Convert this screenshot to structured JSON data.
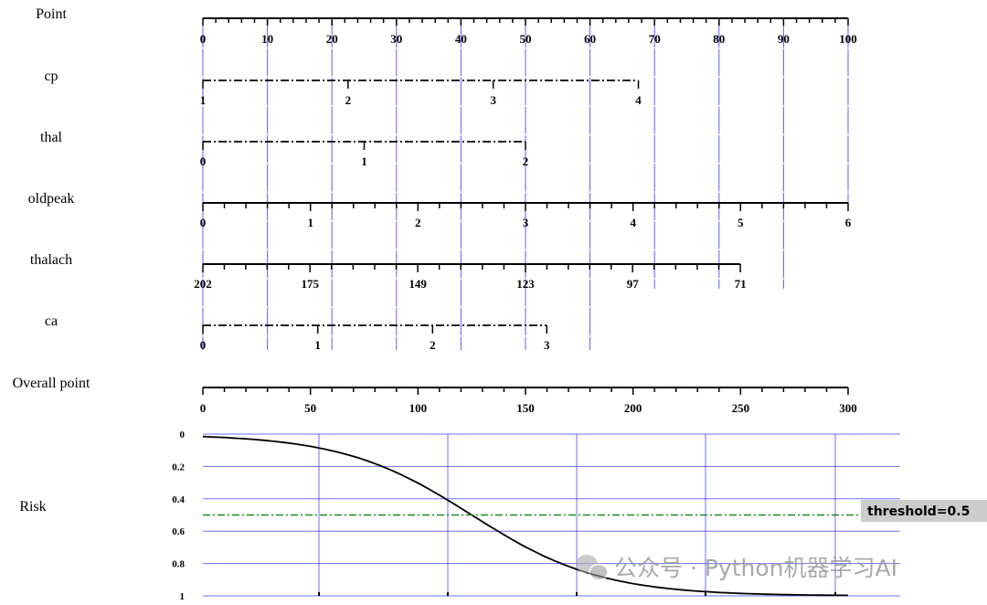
{
  "chart_data": {
    "type": "nomogram",
    "point_axis": {
      "label": "Point",
      "range": [
        0,
        100
      ],
      "ticks": [
        0,
        10,
        20,
        30,
        40,
        50,
        60,
        70,
        80,
        90,
        100
      ],
      "minor_step": 2
    },
    "variables": [
      {
        "name": "cp",
        "style": "dashdot",
        "levels": [
          {
            "label": "1",
            "points": 0
          },
          {
            "label": "2",
            "points": 22.5
          },
          {
            "label": "3",
            "points": 45
          },
          {
            "label": "4",
            "points": 67.5
          }
        ]
      },
      {
        "name": "thal",
        "style": "dashdot",
        "levels": [
          {
            "label": "0",
            "points": 0
          },
          {
            "label": "1",
            "points": 25
          },
          {
            "label": "2",
            "points": 50
          }
        ]
      },
      {
        "name": "oldpeak",
        "style": "solid",
        "minor_per_label": 5,
        "levels": [
          {
            "label": "0",
            "points": 0
          },
          {
            "label": "1",
            "points": 16.67
          },
          {
            "label": "2",
            "points": 33.33
          },
          {
            "label": "3",
            "points": 50
          },
          {
            "label": "4",
            "points": 66.67
          },
          {
            "label": "5",
            "points": 83.33
          },
          {
            "label": "6",
            "points": 100
          }
        ]
      },
      {
        "name": "thalach",
        "style": "solid",
        "minor_per_label": 5,
        "levels": [
          {
            "label": "202",
            "points": 0
          },
          {
            "label": "175",
            "points": 16.6
          },
          {
            "label": "149",
            "points": 33.3
          },
          {
            "label": "123",
            "points": 50
          },
          {
            "label": "97",
            "points": 66.6
          },
          {
            "label": "71",
            "points": 83.3
          }
        ]
      },
      {
        "name": "ca",
        "style": "dashdot",
        "levels": [
          {
            "label": "0",
            "points": 0
          },
          {
            "label": "1",
            "points": 17.8
          },
          {
            "label": "2",
            "points": 35.6
          },
          {
            "label": "3",
            "points": 53.3
          }
        ]
      }
    ],
    "overall_axis": {
      "label": "Overall point",
      "range": [
        0,
        300
      ],
      "ticks": [
        0,
        50,
        100,
        150,
        200,
        250,
        300
      ],
      "minor_step": 10
    },
    "risk": {
      "label": "Risk",
      "yticks": [
        "0",
        "0.2",
        "0.4",
        "0.6",
        "0.8",
        "1"
      ],
      "ylim": [
        0,
        1
      ],
      "curve": {
        "type": "logistic",
        "midpoint_total_points": 125,
        "scale": 30
      },
      "threshold": 0.5,
      "threshold_label": "threshold=0.5",
      "threshold_color": "#1a8a1a"
    },
    "reference_lines": {
      "color": "#3333ff",
      "points": [
        0,
        10,
        20,
        30,
        40,
        50,
        60,
        70,
        80,
        90,
        100
      ]
    }
  },
  "watermark": "公众号 · Python机器学习AI"
}
